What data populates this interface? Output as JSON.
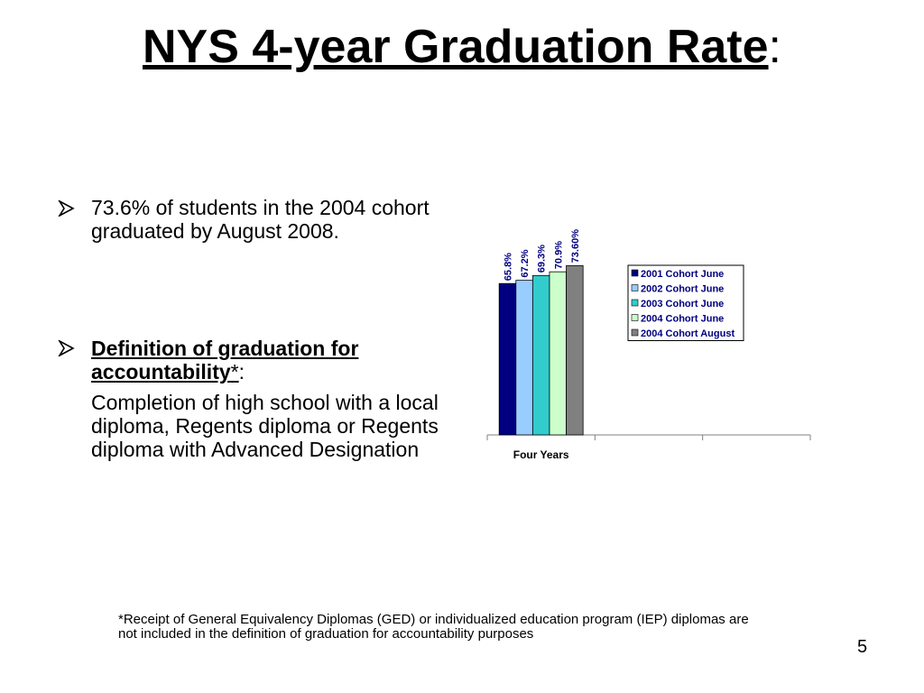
{
  "title": "NYS 4-year Graduation Rate",
  "title_suffix": ":",
  "bullets": [
    {
      "text": "73.6% of students in the 2004 cohort graduated by August 2008."
    },
    {
      "heading": "Definition of graduation for accountability",
      "marker": "*",
      "suffix": ":",
      "text": "Completion of high school with a local diploma, Regents diploma or Regents diploma with Advanced Designation"
    }
  ],
  "footnote": "*Receipt of General Equivalency Diplomas (GED) or individualized education program (IEP) diplomas are not included in the definition of graduation for accountability purposes",
  "page_number": "5",
  "chart_data": {
    "type": "bar",
    "categories": [
      "Four Years",
      null,
      null
    ],
    "ylim": [
      0,
      80
    ],
    "series": [
      {
        "name": "2001 Cohort June",
        "color": "#000080",
        "values": [
          65.8,
          null,
          null
        ],
        "value_labels": [
          "65.8%",
          null,
          null
        ]
      },
      {
        "name": "2002 Cohort June",
        "color": "#99ccff",
        "values": [
          67.2,
          null,
          null
        ],
        "value_labels": [
          "67.2%",
          null,
          null
        ]
      },
      {
        "name": "2003 Cohort June",
        "color": "#33cccc",
        "values": [
          69.3,
          null,
          null
        ],
        "value_labels": [
          "69.3%",
          null,
          null
        ]
      },
      {
        "name": "2004 Cohort June",
        "color": "#ccffcc",
        "values": [
          70.9,
          null,
          null
        ],
        "value_labels": [
          "70.9%",
          null,
          null
        ]
      },
      {
        "name": "2004 Cohort August",
        "color": "#808080",
        "values": [
          73.6,
          null,
          null
        ],
        "value_labels": [
          "73.60%",
          null,
          null
        ]
      }
    ],
    "legend": "right"
  }
}
